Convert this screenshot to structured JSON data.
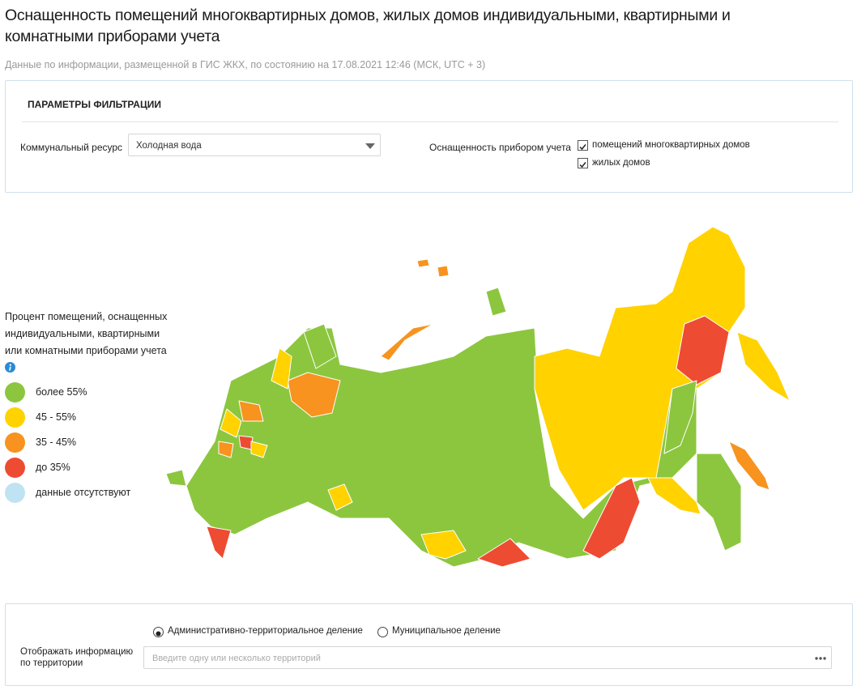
{
  "header": {
    "title": "Оснащенность помещений многоквартирных домов, жилых домов индивидуальными, квартирными и комнатными приборами учета",
    "subtitle": "Данные по информации, размещенной в ГИС ЖКХ, по состоянию на 17.08.2021 12:46 (МСК, UTC + 3)"
  },
  "filters": {
    "title": "ПАРАМЕТРЫ ФИЛЬТРАЦИИ",
    "resource_label": "Коммунальный ресурс",
    "resource_value": "Холодная вода",
    "equipment_label": "Оснащенность прибором учета",
    "options": [
      "помещений многоквартирных домов",
      "жилых домов"
    ]
  },
  "legend": {
    "title": "Процент помещений, оснащенных индивидуальными, квартирными или комнатными приборами учета",
    "items": [
      {
        "label": "более 55%",
        "color": "#8cc63f"
      },
      {
        "label": "45 - 55%",
        "color": "#ffd200"
      },
      {
        "label": "35 - 45%",
        "color": "#f7931e"
      },
      {
        "label": "до 35%",
        "color": "#ee4b33"
      },
      {
        "label": "данные отсутствуют",
        "color": "#bfe3f2"
      }
    ]
  },
  "territory": {
    "radios": [
      "Административно-территориальное деление",
      "Муниципальное деление"
    ],
    "label": "Отображать информацию по территории",
    "placeholder": "Введите одну или несколько территорий"
  }
}
